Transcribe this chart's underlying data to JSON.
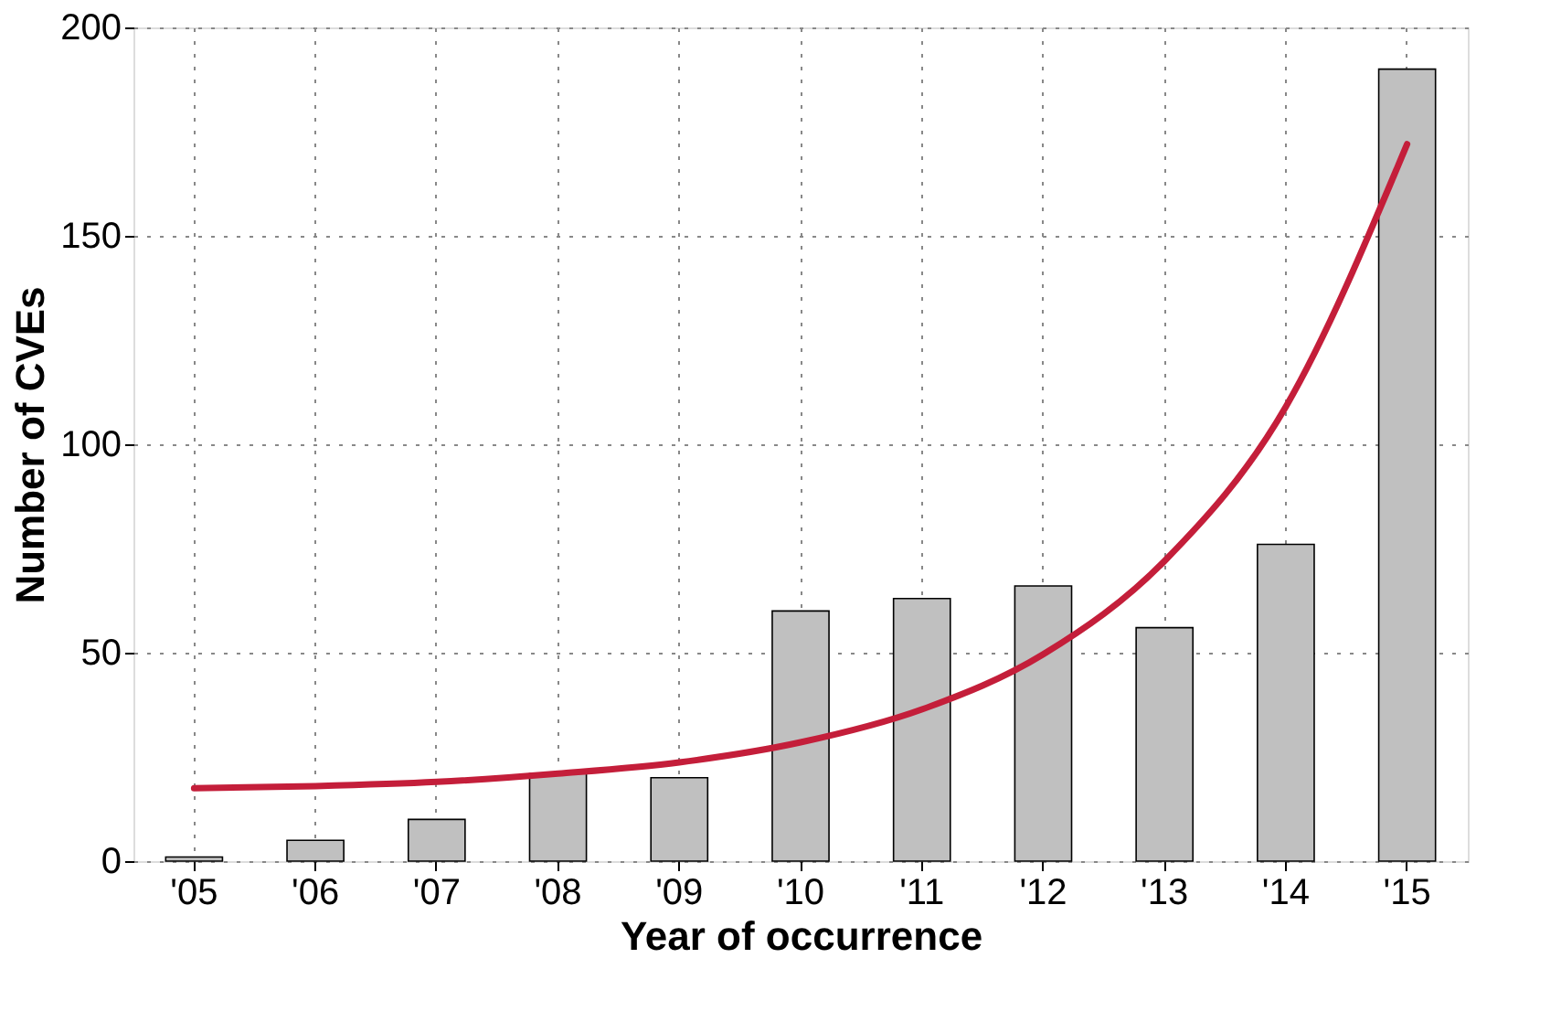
{
  "chart_data": {
    "type": "bar",
    "xlabel": "Year of occurrence",
    "ylabel": "Number of CVEs",
    "categories": [
      "'05",
      "'06",
      "'07",
      "'08",
      "'09",
      "'10",
      "'11",
      "'12",
      "'13",
      "'14",
      "'15"
    ],
    "series": [
      {
        "color": "#c0c0c0",
        "values": [
          1,
          5,
          10,
          21,
          20,
          60,
          63,
          66,
          56,
          76,
          190
        ]
      },
      {
        "type": "line",
        "color": "#c41e3a",
        "values": [
          17.5,
          18,
          19,
          21,
          23.7,
          28.5,
          36.4,
          49.6,
          72,
          109,
          172
        ]
      }
    ],
    "ylim": [
      0,
      200
    ],
    "yticks": [
      0,
      50,
      100,
      150,
      200
    ],
    "grid": true
  }
}
